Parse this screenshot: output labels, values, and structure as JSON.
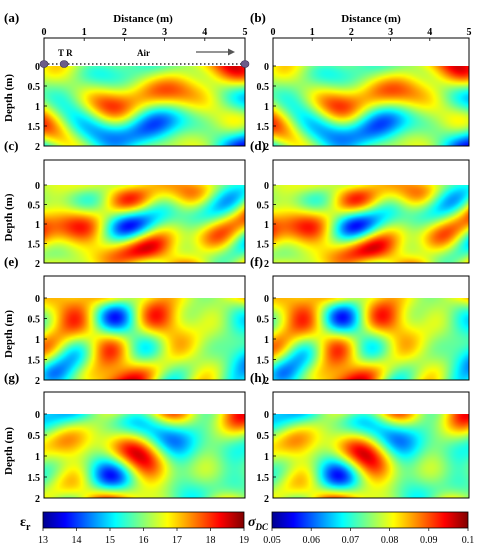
{
  "chart_data": {
    "type": "heatmap",
    "top_axis": {
      "label": "Distance (m)",
      "ticks": [
        "0",
        "1",
        "2",
        "3",
        "4",
        "5"
      ],
      "xlim": [
        0,
        5
      ]
    },
    "left_axis": {
      "label": "Depth (m)",
      "ticks": [
        "0",
        "0.5",
        "1",
        "1.5",
        "2"
      ],
      "ylim": [
        0,
        2
      ]
    },
    "panels": [
      {
        "label": "(a)",
        "variable": "relative permittivity",
        "seed": 11
      },
      {
        "label": "(b)",
        "variable": "DC conductivity",
        "seed": 11
      },
      {
        "label": "(c)",
        "variable": "relative permittivity",
        "seed": 23
      },
      {
        "label": "(d)",
        "variable": "DC conductivity",
        "seed": 23
      },
      {
        "label": "(e)",
        "variable": "relative permittivity",
        "seed": 37
      },
      {
        "label": "(f)",
        "variable": "DC conductivity",
        "seed": 37
      },
      {
        "label": "(g)",
        "variable": "relative permittivity",
        "seed": 51
      },
      {
        "label": "(h)",
        "variable": "DC conductivity",
        "seed": 51
      }
    ],
    "annotations": {
      "transmitter_receiver": "T R",
      "air": "Air",
      "antenna_positions_m": [
        0,
        0.5,
        5
      ],
      "survey_direction": "left-to-right"
    },
    "colorbars": [
      {
        "symbol": "ε",
        "subscript": "r",
        "ticks": [
          "13",
          "14",
          "15",
          "16",
          "17",
          "18",
          "19"
        ],
        "range": [
          13,
          19
        ],
        "colormap": "jet"
      },
      {
        "symbol": "σ",
        "subscript": "DC",
        "ticks": [
          "0.05",
          "0.06",
          "0.07",
          "0.08",
          "0.09",
          "0.1"
        ],
        "range": [
          0.05,
          0.1
        ],
        "colormap": "jet"
      }
    ]
  },
  "colors": {
    "air_band": "#ffffff",
    "antenna_marker": "#6b5c8a",
    "axis": "#000000",
    "jet": [
      "#00008f",
      "#0000ff",
      "#00ffff",
      "#ffff00",
      "#ff0000",
      "#800000"
    ]
  }
}
